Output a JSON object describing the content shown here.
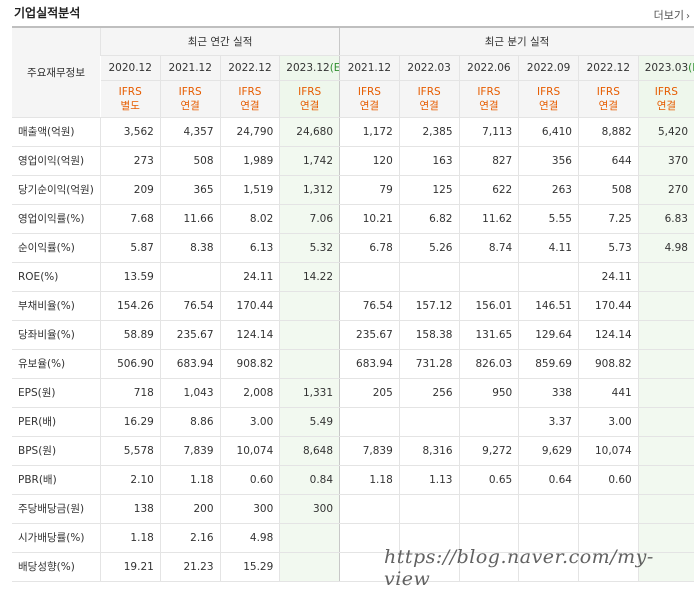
{
  "title": "기업실적분석",
  "more_label": "더보기",
  "more_icon": "chevron-right-icon",
  "header": {
    "corner": "주요재무정보",
    "annual_group": "최근 연간 실적",
    "quarter_group": "최근 분기 실적",
    "periods": [
      {
        "pre": "2020.12",
        "est": ""
      },
      {
        "pre": "2021.12",
        "est": ""
      },
      {
        "pre": "2022.12",
        "est": ""
      },
      {
        "pre": "2023.12",
        "est": "(E)"
      },
      {
        "pre": "2021.12",
        "est": ""
      },
      {
        "pre": "2022.03",
        "est": ""
      },
      {
        "pre": "2022.06",
        "est": ""
      },
      {
        "pre": "2022.09",
        "est": ""
      },
      {
        "pre": "2022.12",
        "est": ""
      },
      {
        "pre": "2023.03",
        "est": "(E)"
      }
    ],
    "ifrs": [
      {
        "a": "IFRS",
        "b": "별도"
      },
      {
        "a": "IFRS",
        "b": "연결"
      },
      {
        "a": "IFRS",
        "b": "연결"
      },
      {
        "a": "IFRS",
        "b": "연결"
      },
      {
        "a": "IFRS",
        "b": "연결"
      },
      {
        "a": "IFRS",
        "b": "연결"
      },
      {
        "a": "IFRS",
        "b": "연결"
      },
      {
        "a": "IFRS",
        "b": "연결"
      },
      {
        "a": "IFRS",
        "b": "연결"
      },
      {
        "a": "IFRS",
        "b": "연결"
      }
    ]
  },
  "rows": [
    {
      "label": "매출액(억원)",
      "values": [
        "3,562",
        "4,357",
        "24,790",
        "24,680",
        "1,172",
        "2,385",
        "7,113",
        "6,410",
        "8,882",
        "5,420"
      ]
    },
    {
      "label": "영업이익(억원)",
      "values": [
        "273",
        "508",
        "1,989",
        "1,742",
        "120",
        "163",
        "827",
        "356",
        "644",
        "370"
      ]
    },
    {
      "label": "당기순이익(억원)",
      "values": [
        "209",
        "365",
        "1,519",
        "1,312",
        "79",
        "125",
        "622",
        "263",
        "508",
        "270"
      ]
    },
    {
      "label": "영업이익률(%)",
      "values": [
        "7.68",
        "11.66",
        "8.02",
        "7.06",
        "10.21",
        "6.82",
        "11.62",
        "5.55",
        "7.25",
        "6.83"
      ]
    },
    {
      "label": "순이익률(%)",
      "values": [
        "5.87",
        "8.38",
        "6.13",
        "5.32",
        "6.78",
        "5.26",
        "8.74",
        "4.11",
        "5.73",
        "4.98"
      ]
    },
    {
      "label": "ROE(%)",
      "values": [
        "13.59",
        "",
        "24.11",
        "14.22",
        "",
        "",
        "",
        "",
        "24.11",
        ""
      ]
    },
    {
      "label": "부채비율(%)",
      "values": [
        "154.26",
        "76.54",
        "170.44",
        "",
        "76.54",
        "157.12",
        "156.01",
        "146.51",
        "170.44",
        ""
      ]
    },
    {
      "label": "당좌비율(%)",
      "values": [
        "58.89",
        "235.67",
        "124.14",
        "",
        "235.67",
        "158.38",
        "131.65",
        "129.64",
        "124.14",
        ""
      ]
    },
    {
      "label": "유보율(%)",
      "values": [
        "506.90",
        "683.94",
        "908.82",
        "",
        "683.94",
        "731.28",
        "826.03",
        "859.69",
        "908.82",
        ""
      ]
    },
    {
      "label": "EPS(원)",
      "values": [
        "718",
        "1,043",
        "2,008",
        "1,331",
        "205",
        "256",
        "950",
        "338",
        "441",
        ""
      ]
    },
    {
      "label": "PER(배)",
      "values": [
        "16.29",
        "8.86",
        "3.00",
        "5.49",
        "",
        "",
        "",
        "3.37",
        "3.00",
        ""
      ]
    },
    {
      "label": "BPS(원)",
      "values": [
        "5,578",
        "7,839",
        "10,074",
        "8,648",
        "7,839",
        "8,316",
        "9,272",
        "9,629",
        "10,074",
        ""
      ]
    },
    {
      "label": "PBR(배)",
      "values": [
        "2.10",
        "1.18",
        "0.60",
        "0.84",
        "1.18",
        "1.13",
        "0.65",
        "0.64",
        "0.60",
        ""
      ]
    },
    {
      "label": "주당배당금(원)",
      "values": [
        "138",
        "200",
        "300",
        "300",
        "",
        "",
        "",
        "",
        "",
        ""
      ]
    },
    {
      "label": "시가배당률(%)",
      "values": [
        "1.18",
        "2.16",
        "4.98",
        "",
        "",
        "",
        "",
        "",
        "",
        ""
      ]
    },
    {
      "label": "배당성향(%)",
      "values": [
        "19.21",
        "21.23",
        "15.29",
        "",
        "",
        "",
        "",
        "",
        "",
        ""
      ]
    }
  ],
  "watermark": "https://blog.naver.com/my-view"
}
